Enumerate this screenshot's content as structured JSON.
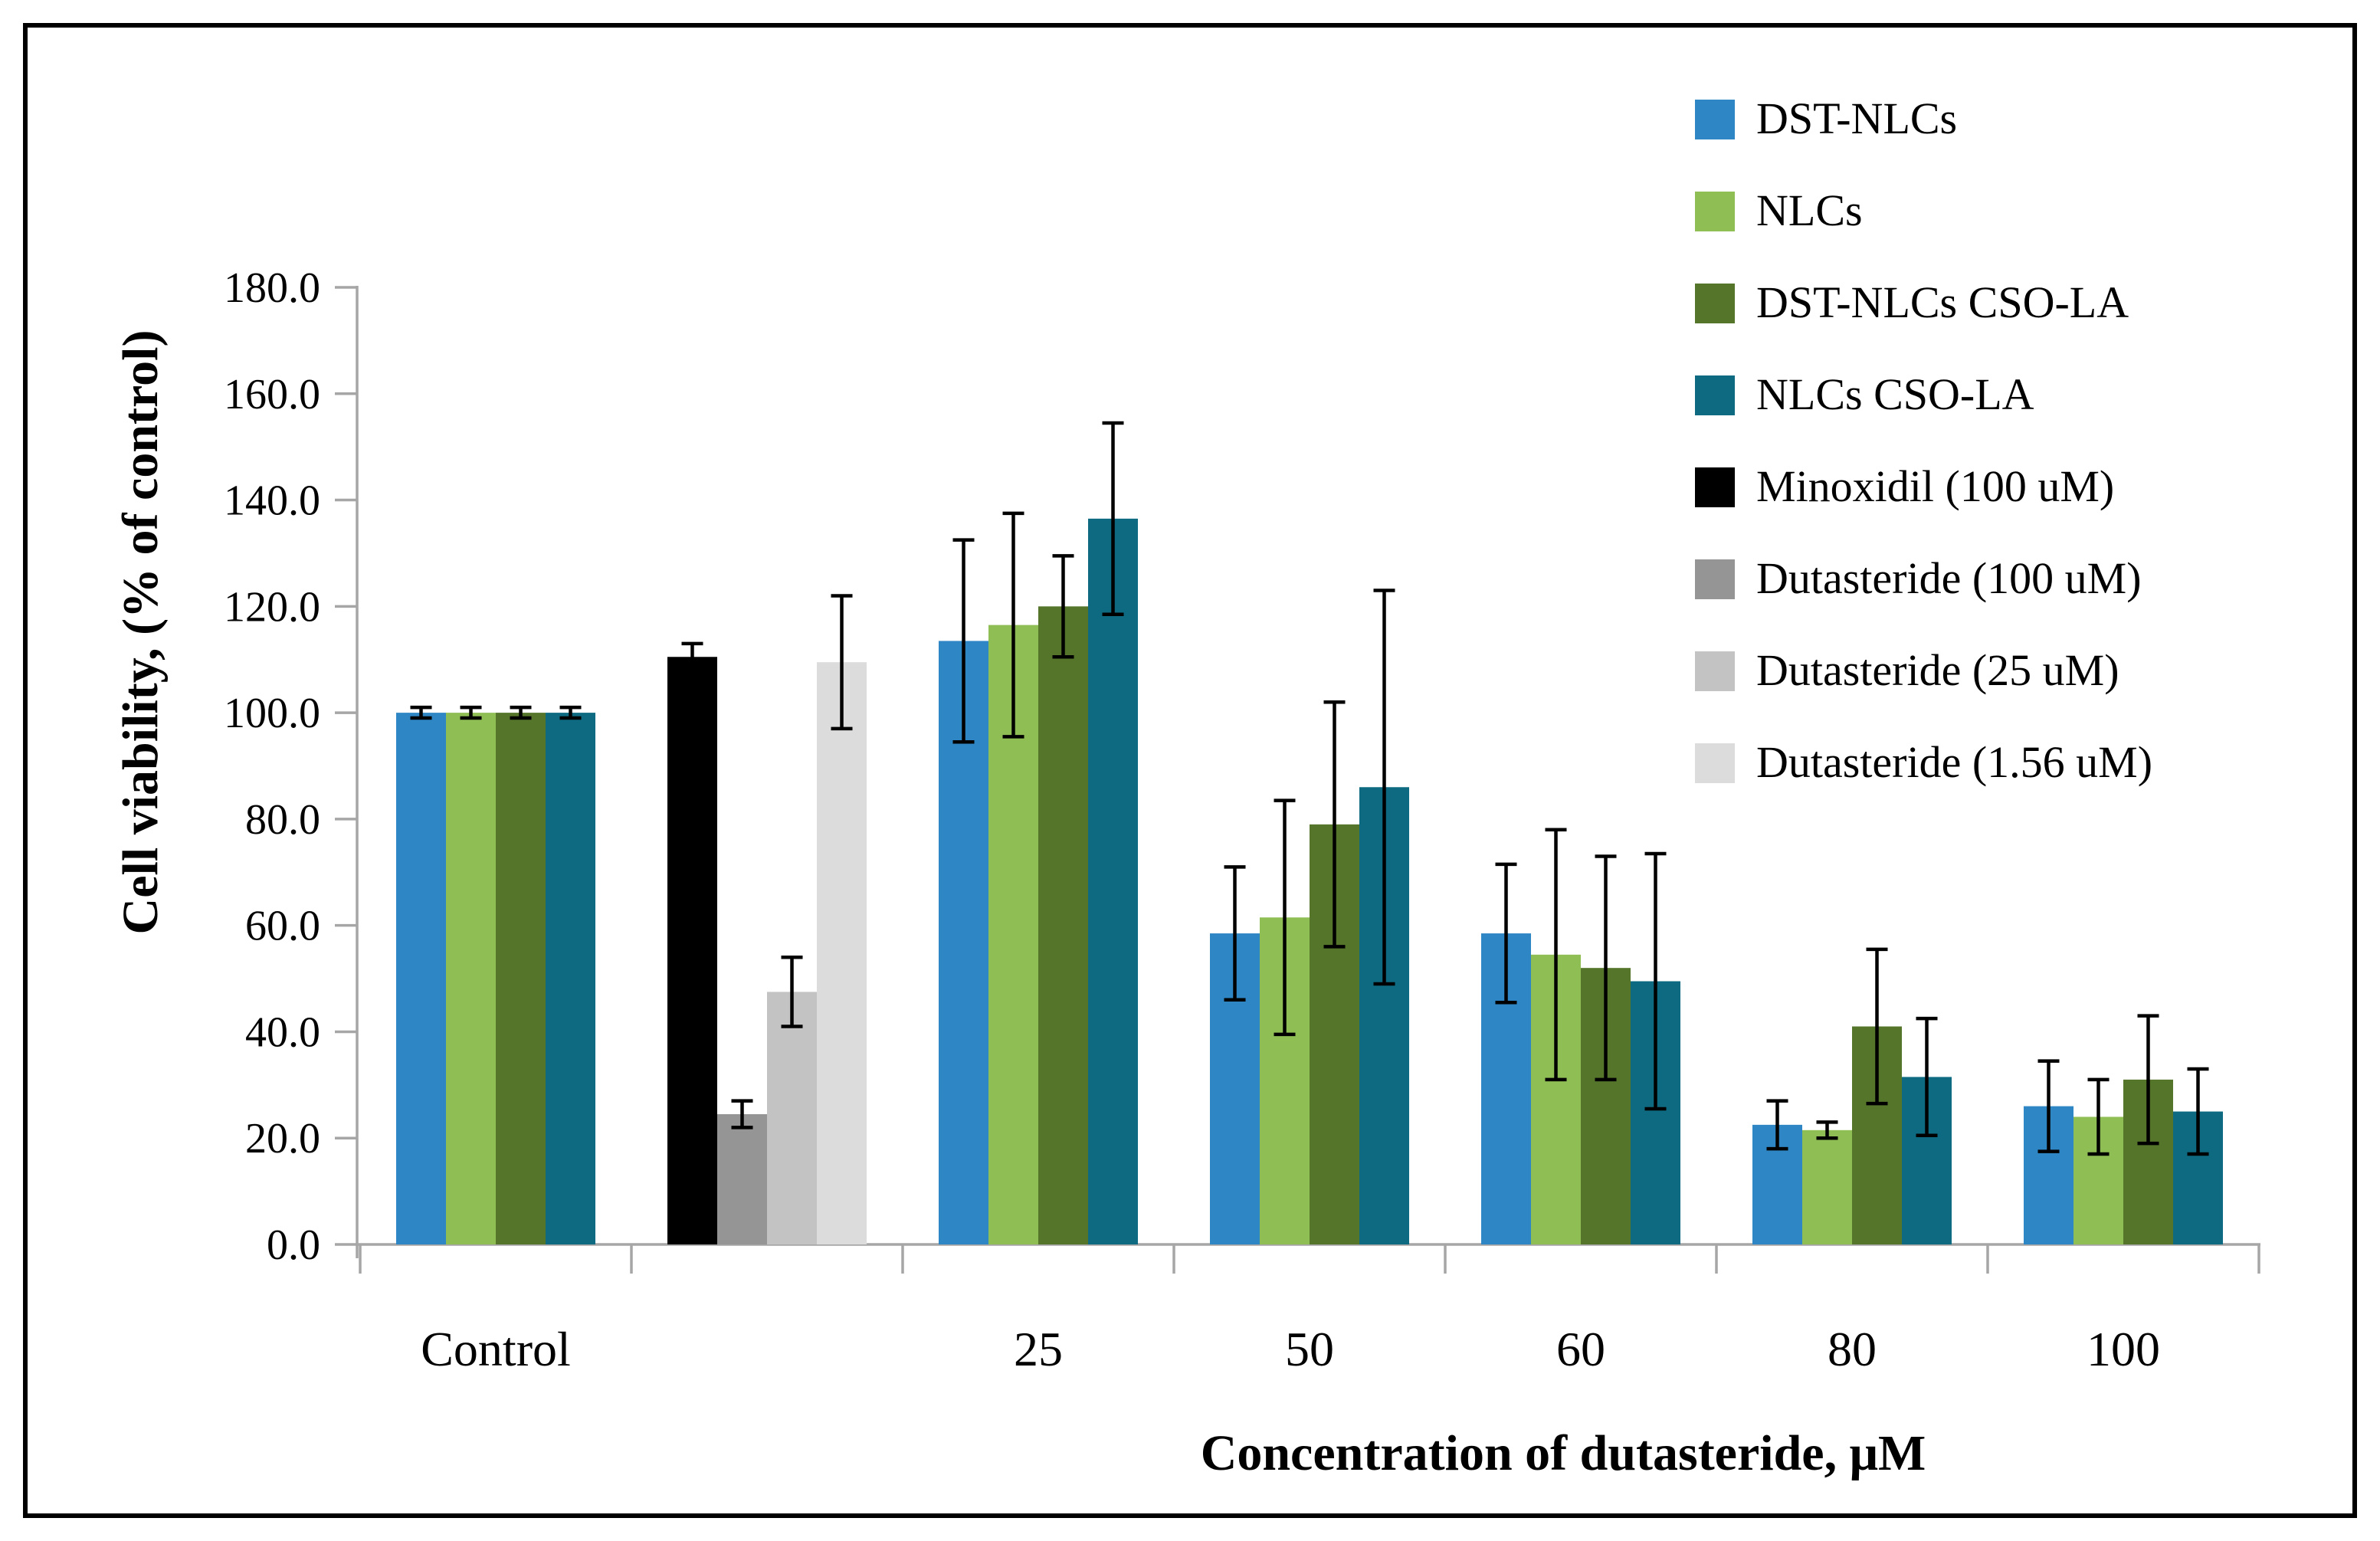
{
  "figure": {
    "background": "#ffffff",
    "border_color": "#000000"
  },
  "chart_data": {
    "type": "bar",
    "title": "",
    "xlabel": "Concentration of dutasteride, μM",
    "ylabel": "Cell viability, (% of control)",
    "ylim": [
      0,
      180
    ],
    "ytick_step": 20,
    "y_tick_labels": [
      "0.0",
      "20.0",
      "40.0",
      "60.0",
      "80.0",
      "100.0",
      "120.0",
      "140.0",
      "160.0",
      "180.0"
    ],
    "grid": false,
    "legend_position": "top-right",
    "error_bars": true,
    "axis_line_color": "#A6A6A6",
    "error_bar_color": "#000000",
    "categories": [
      "Control",
      "",
      "25",
      "50",
      "60",
      "80",
      "100"
    ],
    "series": [
      {
        "name": "DST-NLCs",
        "color": "#2E86C4",
        "values": [
          100.0,
          null,
          113.5,
          58.5,
          58.5,
          22.5,
          26.0
        ],
        "errors": [
          1.0,
          null,
          19.0,
          12.5,
          13.0,
          4.5,
          8.5
        ]
      },
      {
        "name": "NLCs",
        "color": "#8FBE55",
        "values": [
          100.0,
          null,
          116.5,
          61.5,
          54.5,
          21.5,
          24.0
        ],
        "errors": [
          1.0,
          null,
          21.0,
          22.0,
          23.5,
          1.5,
          7.0
        ]
      },
      {
        "name": "DST-NLCs CSO-LA",
        "color": "#55752B",
        "values": [
          100.0,
          null,
          120.0,
          79.0,
          52.0,
          41.0,
          31.0
        ],
        "errors": [
          1.0,
          null,
          9.5,
          23.0,
          21.0,
          14.5,
          12.0
        ]
      },
      {
        "name": "NLCs CSO-LA",
        "color": "#0D6A80",
        "values": [
          100.0,
          null,
          136.5,
          86.0,
          49.5,
          31.5,
          25.0
        ],
        "errors": [
          1.0,
          null,
          18.0,
          37.0,
          24.0,
          11.0,
          8.0
        ]
      },
      {
        "name": "Minoxidil (100 uM)",
        "color": "#000000",
        "values": [
          null,
          110.5,
          null,
          null,
          null,
          null,
          null
        ],
        "errors": [
          null,
          2.5,
          null,
          null,
          null,
          null,
          null
        ]
      },
      {
        "name": "Dutasteride (100 uM)",
        "color": "#959595",
        "values": [
          null,
          24.5,
          null,
          null,
          null,
          null,
          null
        ],
        "errors": [
          null,
          2.5,
          null,
          null,
          null,
          null,
          null
        ]
      },
      {
        "name": "Dutasteride (25 uM)",
        "color": "#C3C3C3",
        "values": [
          null,
          47.5,
          null,
          null,
          null,
          null,
          null
        ],
        "errors": [
          null,
          6.5,
          null,
          null,
          null,
          null,
          null
        ]
      },
      {
        "name": "Dutasteride (1.56 uM)",
        "color": "#DCDCDC",
        "values": [
          null,
          109.5,
          null,
          null,
          null,
          null,
          null
        ],
        "errors": [
          null,
          12.5,
          null,
          null,
          null,
          null,
          null
        ]
      }
    ]
  }
}
